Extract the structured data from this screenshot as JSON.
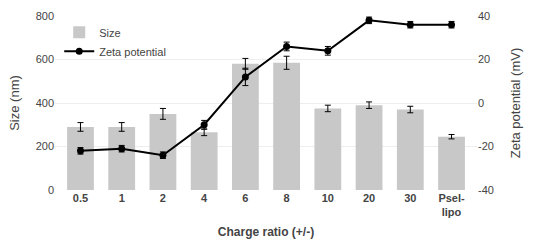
{
  "chart_data": {
    "type": "bar",
    "categories": [
      "0.5",
      "1",
      "2",
      "4",
      "6",
      "8",
      "10",
      "20",
      "30",
      "Psel-\nlipo"
    ],
    "xlabel": "Charge ratio (+/-)",
    "ylabel": "Size (nm)",
    "y2label": "Zeta potential (mV)",
    "series": [
      {
        "name": "Size",
        "type": "bar",
        "color": "#c8c8c8",
        "values": [
          290,
          290,
          350,
          265,
          580,
          585,
          375,
          390,
          370,
          245
        ],
        "errors": [
          20,
          20,
          25,
          15,
          25,
          30,
          15,
          15,
          15,
          10
        ]
      },
      {
        "name": "Zeta potential",
        "type": "line",
        "axis": "y2",
        "color": "#000000",
        "marker": "circle",
        "values": [
          -22,
          -21,
          -24,
          -10,
          12,
          26,
          24,
          38,
          36,
          36
        ],
        "errors": [
          1.5,
          1.5,
          1.5,
          2,
          4,
          2,
          2,
          1.5,
          1.5,
          1.5
        ]
      }
    ],
    "ylim": [
      0,
      800
    ],
    "yticks": [
      0,
      200,
      400,
      600,
      800
    ],
    "y2lim": [
      -40,
      40
    ],
    "y2ticks": [
      -40,
      -20,
      0,
      20,
      40
    ],
    "grid": true,
    "legend": "upper left"
  }
}
